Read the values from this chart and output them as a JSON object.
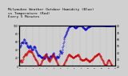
{
  "title": "Milwaukee Weather Outdoor Humidity (Blue)\nvs Temperature (Red)\nEvery 5 Minutes",
  "title_fontsize": 3.2,
  "background_color": "#d0d0d0",
  "plot_bg_color": "#d0d0d0",
  "line_color_blue": "#0000cc",
  "line_color_red": "#cc0000",
  "ylim_left": [
    0,
    100
  ],
  "ylim_right": [
    20,
    80
  ],
  "yticks_left": [
    0,
    20,
    40,
    60,
    80,
    100
  ],
  "yticks_right": [
    20,
    30,
    40,
    50,
    60,
    70,
    80
  ],
  "num_points": 288,
  "humidity": [
    45,
    45,
    48,
    50,
    52,
    55,
    57,
    58,
    58,
    57,
    56,
    58,
    62,
    65,
    65,
    63,
    60,
    57,
    55,
    56,
    58,
    55,
    52,
    50,
    48,
    47,
    46,
    45,
    44,
    45,
    48,
    50,
    50,
    48,
    46,
    44,
    42,
    41,
    40,
    40,
    41,
    43,
    45,
    47,
    48,
    47,
    45,
    43,
    40,
    38,
    36,
    34,
    32,
    30,
    28,
    27,
    26,
    25,
    26,
    27,
    26,
    25,
    24,
    23,
    22,
    21,
    20,
    20,
    21,
    22,
    22,
    21,
    20,
    19,
    18,
    19,
    20,
    22,
    25,
    28,
    30,
    28,
    25,
    22,
    20,
    19,
    18,
    17,
    18,
    19,
    20,
    22,
    24,
    25,
    24,
    23,
    22,
    24,
    26,
    28,
    30,
    32,
    30,
    28,
    25,
    22,
    20,
    18,
    17,
    18,
    20,
    22,
    24,
    23,
    22,
    21,
    20,
    22,
    25,
    28,
    32,
    36,
    38,
    36,
    34,
    32,
    30,
    35,
    40,
    45,
    50,
    55,
    60,
    65,
    70,
    72,
    74,
    76,
    78,
    80,
    82,
    84,
    86,
    88,
    90,
    92,
    94,
    95,
    96,
    97,
    97,
    98,
    98,
    99,
    99,
    99,
    100,
    100,
    100,
    100,
    99,
    98,
    97,
    96,
    95,
    95,
    95,
    94,
    94,
    95,
    95,
    96,
    97,
    98,
    99,
    100,
    100,
    100,
    100,
    100,
    100,
    100,
    100,
    100,
    100,
    100,
    99,
    98,
    97,
    96,
    95,
    94,
    93,
    93,
    92,
    91,
    90,
    90,
    90,
    91,
    92,
    93,
    94,
    95,
    95,
    96,
    96,
    97,
    97,
    97,
    98,
    98,
    99,
    99,
    99,
    99,
    100,
    100,
    100,
    100,
    100,
    100,
    100,
    100,
    100,
    100,
    100,
    100,
    100,
    100,
    100,
    100,
    100,
    100,
    100,
    100,
    100,
    100,
    100,
    100,
    100,
    100,
    100,
    100,
    100,
    100,
    100,
    100,
    100,
    100,
    100,
    100,
    100,
    100,
    100,
    100,
    100,
    100,
    100,
    100,
    100,
    100,
    100,
    100,
    100,
    100,
    100,
    100,
    100,
    100,
    100,
    100,
    100,
    100,
    100,
    100,
    100,
    100,
    100,
    100,
    100,
    100,
    100,
    100,
    100,
    100,
    100,
    100
  ],
  "temperature": [
    25,
    26,
    27,
    28,
    28,
    27,
    26,
    25,
    26,
    28,
    30,
    32,
    33,
    34,
    35,
    36,
    37,
    38,
    38,
    37,
    36,
    37,
    38,
    39,
    40,
    41,
    42,
    43,
    43,
    42,
    41,
    42,
    43,
    43,
    42,
    41,
    40,
    40,
    39,
    38,
    37,
    36,
    35,
    34,
    33,
    32,
    31,
    30,
    30,
    29,
    28,
    27,
    26,
    25,
    24,
    23,
    22,
    21,
    20,
    19,
    20,
    21,
    22,
    23,
    24,
    25,
    26,
    27,
    28,
    29,
    30,
    31,
    32,
    33,
    34,
    35,
    36,
    37,
    37,
    36,
    35,
    34,
    33,
    32,
    31,
    30,
    29,
    28,
    27,
    26,
    27,
    28,
    29,
    30,
    31,
    32,
    33,
    34,
    35,
    36,
    37,
    36,
    35,
    34,
    33,
    32,
    31,
    30,
    29,
    28,
    27,
    26,
    25,
    24,
    23,
    22,
    21,
    20,
    19,
    18,
    17,
    16,
    15,
    14,
    14,
    15,
    16,
    17,
    18,
    19,
    20,
    21,
    22,
    23,
    24,
    25,
    26,
    27,
    28,
    29,
    30,
    31,
    32,
    33,
    34,
    35,
    36,
    37,
    37,
    37,
    36,
    36,
    35,
    35,
    34,
    34,
    33,
    33,
    33,
    32,
    32,
    32,
    32,
    33,
    33,
    33,
    34,
    34,
    35,
    35,
    35,
    36,
    36,
    36,
    37,
    37,
    36,
    35,
    34,
    33,
    32,
    31,
    30,
    30,
    30,
    29,
    29,
    29,
    28,
    28,
    28,
    28,
    29,
    29,
    30,
    30,
    30,
    31,
    31,
    31,
    30,
    30,
    29,
    29,
    28,
    28,
    27,
    27,
    26,
    26,
    26,
    27,
    27,
    28,
    28,
    29,
    29,
    30,
    30,
    31,
    31,
    32,
    32,
    33,
    33,
    34,
    34,
    35,
    35,
    36,
    36,
    36,
    37,
    37,
    37,
    38,
    38,
    38,
    38,
    37,
    36,
    35,
    34,
    33,
    32,
    31,
    30,
    29,
    28,
    27,
    26,
    25,
    24,
    23,
    22,
    21,
    20,
    20,
    21,
    22,
    23,
    24,
    25,
    26,
    27,
    28,
    29,
    29,
    28,
    27,
    26,
    25,
    24,
    23,
    22,
    21,
    20,
    19,
    18,
    17,
    16,
    15,
    14,
    14,
    15,
    15,
    15,
    15
  ]
}
